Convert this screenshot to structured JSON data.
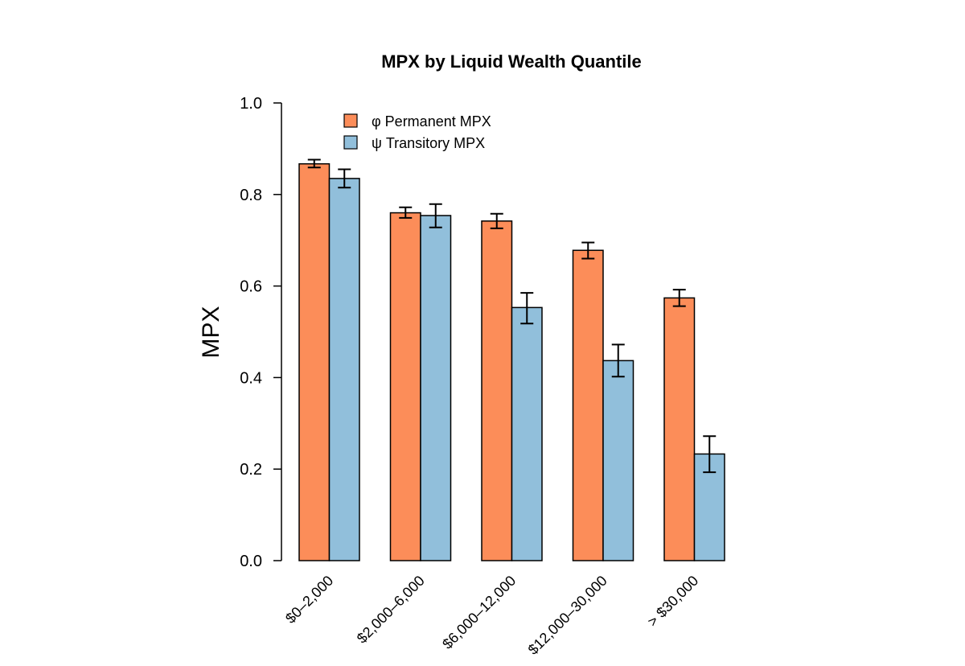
{
  "chart_data": {
    "type": "bar",
    "title": "MPX  by  Liquid Wealth Quantile",
    "xlabel": "",
    "ylabel": "MPX",
    "ylim": [
      0,
      1
    ],
    "yticks": [
      0.0,
      0.2,
      0.4,
      0.6,
      0.8,
      1.0
    ],
    "ytick_labels": [
      "0.0",
      "0.2",
      "0.4",
      "0.6",
      "0.8",
      "1.0"
    ],
    "categories": [
      "$0–2,000",
      "$2,000–6,000",
      "$6,000–12,000",
      "$12,000–30,000",
      "> $30,000"
    ],
    "series": [
      {
        "name": "φ Permanent MPX",
        "color": "#FC8D59",
        "values": [
          0.867,
          0.76,
          0.742,
          0.678,
          0.574
        ],
        "error_low": [
          0.859,
          0.749,
          0.726,
          0.66,
          0.556
        ],
        "error_high": [
          0.876,
          0.772,
          0.758,
          0.695,
          0.592
        ]
      },
      {
        "name": "ψ Transitory MPX",
        "color": "#91BFDB",
        "values": [
          0.835,
          0.754,
          0.553,
          0.437,
          0.233
        ],
        "error_low": [
          0.815,
          0.728,
          0.518,
          0.402,
          0.193
        ],
        "error_high": [
          0.855,
          0.779,
          0.585,
          0.472,
          0.272
        ]
      }
    ],
    "legend_position": "top-left",
    "grid": false
  }
}
